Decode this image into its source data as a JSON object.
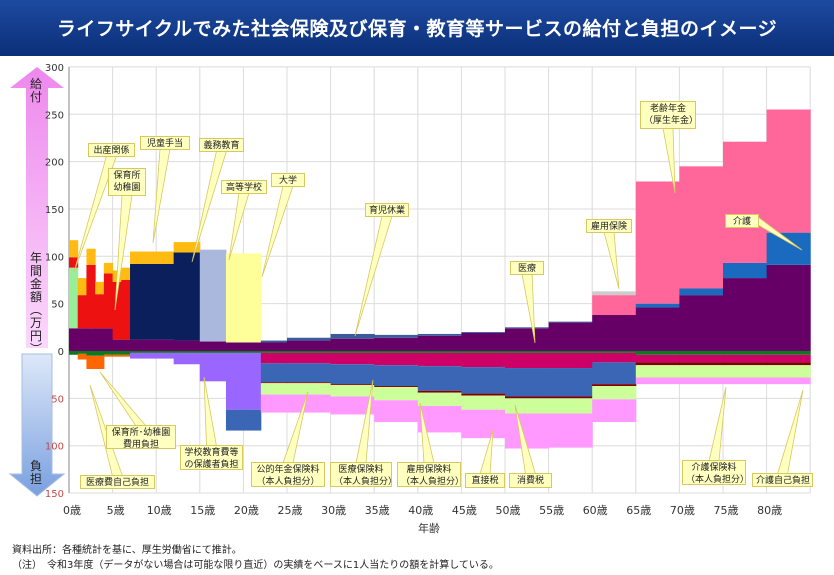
{
  "title": "ライフサイクルでみた社会保険及び保育・教育等サービスの給付と負担のイメージ",
  "arrows": {
    "benefit": "給付",
    "unit": "年間金額（万円）",
    "burden": "負担"
  },
  "notes": [
    "資料出所：各種統計を基に、厚生労働省にて推計。",
    "（注）　令和3年度（データがない場合は可能な限り直近）の実績をベースに1人当たりの額を計算している。"
  ],
  "chart_data": {
    "type": "area",
    "xlabel": "年齢",
    "x_ticks": [
      "0歳",
      "5歳",
      "10歳",
      "15歳",
      "20歳",
      "25歳",
      "30歳",
      "35歳",
      "40歳",
      "45歳",
      "50歳",
      "55歳",
      "60歳",
      "65歳",
      "70歳",
      "75歳",
      "80歳"
    ],
    "y_ticks_benefit": [
      "300",
      "250",
      "200",
      "150",
      "100",
      "50",
      "0"
    ],
    "y_ticks_burden": [
      "50",
      "100",
      "150"
    ],
    "ylim_benefit": [
      0,
      300
    ],
    "ylim_burden": [
      0,
      150
    ],
    "grid": true,
    "age_bins": [
      [
        0,
        1
      ],
      [
        1,
        2
      ],
      [
        2,
        3
      ],
      [
        3,
        4
      ],
      [
        4,
        5
      ],
      [
        5,
        6
      ],
      [
        6,
        7
      ],
      [
        7,
        12
      ],
      [
        12,
        15
      ],
      [
        15,
        18
      ],
      [
        18,
        22
      ],
      [
        22,
        25
      ],
      [
        25,
        30
      ],
      [
        30,
        35
      ],
      [
        35,
        40
      ],
      [
        40,
        45
      ],
      [
        45,
        50
      ],
      [
        50,
        55
      ],
      [
        55,
        60
      ],
      [
        60,
        65
      ],
      [
        65,
        70
      ],
      [
        70,
        75
      ],
      [
        75,
        80
      ],
      [
        80,
        85
      ]
    ],
    "benefit_series": [
      {
        "id": "medical",
        "color": "#660066",
        "values": [
          24,
          24,
          24,
          24,
          24,
          12,
          12,
          12,
          11,
          10,
          9,
          9,
          11,
          13,
          14,
          16,
          19,
          24,
          30,
          38,
          46,
          59,
          77,
          91
        ]
      },
      {
        "id": "birth",
        "color": "#99ee99",
        "values": [
          64,
          0,
          0,
          0,
          0,
          0,
          0,
          0,
          0,
          0,
          0,
          0,
          0,
          0,
          0,
          0,
          0,
          0,
          0,
          0,
          0,
          0,
          0,
          0
        ]
      },
      {
        "id": "nursery",
        "color": "#ee1111",
        "values": [
          11,
          35,
          67,
          36,
          58,
          61,
          63,
          0,
          0,
          0,
          0,
          0,
          0,
          0,
          0,
          0,
          0,
          0,
          0,
          0,
          0,
          0,
          0,
          0
        ]
      },
      {
        "id": "compulsory-edu",
        "color": "#0a1f5c",
        "values": [
          0,
          0,
          0,
          0,
          0,
          0,
          0,
          80,
          93,
          0,
          0,
          0,
          0,
          0,
          0,
          0,
          0,
          0,
          0,
          0,
          0,
          0,
          0,
          0
        ]
      },
      {
        "id": "child-allowance",
        "color": "#ffbb11",
        "values": [
          18,
          18,
          17,
          13,
          11,
          12,
          13,
          13,
          11,
          0,
          0,
          0,
          0,
          0,
          0,
          0,
          0,
          0,
          0,
          0,
          0,
          0,
          0,
          0
        ]
      },
      {
        "id": "high-school",
        "color": "#aab8dd",
        "values": [
          0,
          0,
          0,
          0,
          0,
          0,
          0,
          0,
          0,
          97,
          0,
          0,
          0,
          0,
          0,
          0,
          0,
          0,
          0,
          0,
          0,
          0,
          0,
          0
        ]
      },
      {
        "id": "university",
        "color": "#ffff99",
        "values": [
          0,
          0,
          0,
          0,
          0,
          0,
          0,
          0,
          0,
          0,
          94,
          0,
          0,
          0,
          0,
          0,
          0,
          0,
          0,
          0,
          0,
          0,
          0,
          0
        ]
      },
      {
        "id": "childcare-leave",
        "color": "#3b5a9a",
        "values": [
          0,
          0,
          0,
          0,
          0,
          0,
          0,
          0,
          0,
          0,
          0,
          2,
          3,
          5,
          3,
          2,
          1,
          1,
          1,
          0,
          0,
          0,
          0,
          0
        ]
      },
      {
        "id": "long-term-care",
        "color": "#1a6bbf",
        "values": [
          0,
          0,
          0,
          0,
          0,
          0,
          0,
          0,
          0,
          0,
          0,
          0,
          0,
          0,
          0,
          0,
          0,
          0,
          0,
          0,
          4,
          7,
          16,
          34
        ]
      },
      {
        "id": "old-age-pension",
        "color": "#ff6699",
        "values": [
          0,
          0,
          0,
          0,
          0,
          0,
          0,
          0,
          0,
          0,
          0,
          0,
          0,
          0,
          0,
          0,
          0,
          0,
          0,
          21,
          129,
          129,
          128,
          130
        ]
      },
      {
        "id": "employment-insurance",
        "color": "#cccccc",
        "values": [
          0,
          0,
          0,
          0,
          0,
          0,
          0,
          0,
          0,
          0,
          0,
          0,
          0,
          0,
          0,
          0,
          0,
          0,
          0,
          4,
          0,
          0,
          0,
          0
        ]
      }
    ],
    "burden_series": [
      {
        "id": "medical-copay",
        "color": "#0b7a1e",
        "values": [
          4,
          3,
          5,
          5,
          4,
          4,
          4,
          2,
          2,
          2,
          2,
          2,
          2,
          2,
          2,
          2,
          2,
          2,
          2,
          2,
          4,
          4,
          4,
          4
        ]
      },
      {
        "id": "nursery-fee",
        "color": "#ff6600",
        "values": [
          0,
          6,
          14,
          14,
          2,
          2,
          2,
          0,
          0,
          0,
          0,
          0,
          0,
          0,
          0,
          0,
          0,
          0,
          0,
          0,
          0,
          0,
          0,
          0
        ]
      },
      {
        "id": "school-fee",
        "color": "#9966ff",
        "values": [
          0,
          0,
          0,
          0,
          0,
          0,
          0,
          6,
          12,
          30,
          60,
          0,
          0,
          0,
          0,
          0,
          0,
          0,
          0,
          0,
          0,
          0,
          0,
          0
        ]
      },
      {
        "id": "pension-premium",
        "color": "#cc0066",
        "values": [
          0,
          0,
          0,
          0,
          0,
          0,
          0,
          0,
          0,
          0,
          0,
          11,
          11,
          12,
          13,
          14,
          15,
          16,
          16,
          10,
          8,
          8,
          8,
          8
        ]
      },
      {
        "id": "health-premium",
        "color": "#3a66b5",
        "values": [
          0,
          0,
          0,
          0,
          0,
          0,
          0,
          0,
          0,
          0,
          22,
          20,
          20,
          21,
          22,
          26,
          28,
          30,
          30,
          23,
          0,
          0,
          0,
          0
        ]
      },
      {
        "id": "employment-premium",
        "color": "#800000",
        "values": [
          0,
          0,
          0,
          0,
          0,
          0,
          0,
          0,
          0,
          0,
          0,
          1,
          1,
          1,
          1,
          2,
          2,
          2,
          2,
          2,
          3,
          3,
          3,
          3
        ]
      },
      {
        "id": "direct-tax",
        "color": "#ccff99",
        "values": [
          0,
          0,
          0,
          0,
          0,
          0,
          0,
          0,
          0,
          0,
          0,
          12,
          12,
          12,
          14,
          14,
          15,
          16,
          16,
          14,
          13,
          13,
          13,
          13
        ]
      },
      {
        "id": "consumption-tax",
        "color": "#ff99ff",
        "values": [
          0,
          0,
          0,
          0,
          0,
          0,
          0,
          0,
          0,
          0,
          0,
          19,
          19,
          19,
          23,
          28,
          30,
          37,
          36,
          24,
          7,
          7,
          7,
          7
        ]
      }
    ],
    "annotations": [
      {
        "text": "出産関係"
      },
      {
        "text": "保育所\n幼稚園"
      },
      {
        "text": "児童手当"
      },
      {
        "text": "義務教育"
      },
      {
        "text": "高等学校"
      },
      {
        "text": "大学"
      },
      {
        "text": "育児休業"
      },
      {
        "text": "医療"
      },
      {
        "text": "雇用保険"
      },
      {
        "text": "老齢年金\n（厚生年金）"
      },
      {
        "text": "介護"
      },
      {
        "text": "医療費自己負担"
      },
      {
        "text": "保育所･幼稚園\n費用負担"
      },
      {
        "text": "学校教育費等\nの保護者負担"
      },
      {
        "text": "公的年金保険料\n（本人負担分）"
      },
      {
        "text": "医療保険料\n（本人負担分）"
      },
      {
        "text": "雇用保険料\n（本人負担分）"
      },
      {
        "text": "直接税"
      },
      {
        "text": "消費税"
      },
      {
        "text": "介護保険料\n（本人負担分）"
      },
      {
        "text": "介護自己負担"
      }
    ]
  }
}
